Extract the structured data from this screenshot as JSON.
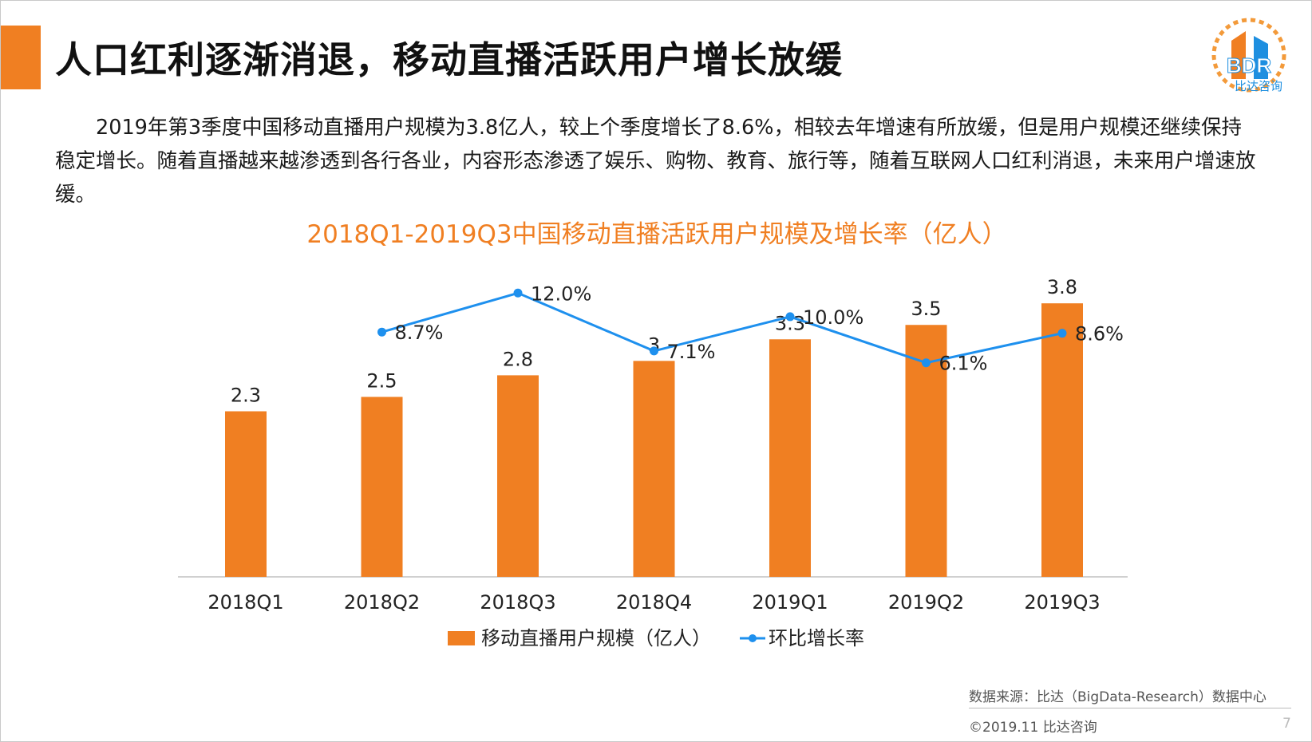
{
  "slide": {
    "title": "人口红利逐渐消退，移动直播活跃用户增长放缓",
    "paragraph": "2019年第3季度中国移动直播用户规模为3.8亿人，较上个季度增长了8.6%，相较去年增速有所放缓，但是用户规模还继续保持稳定增长。随着直播越来越渗透到各行各业，内容形态渗透了娱乐、购物、教育、旅行等，随着互联网人口红利消退，未来用户增速放缓。",
    "logo_text": "BDR",
    "logo_subtext": "比达咨询",
    "source": "数据来源：比达（BigData-Research）数据中心",
    "copyright": "©2019.11 比达咨询",
    "page_number": "7",
    "accent_color": "#f07f22",
    "line_color": "#1e90ee"
  },
  "chart_data": {
    "type": "bar",
    "title": "2018Q1-2019Q3中国移动直播活跃用户规模及增长率（亿人）",
    "categories": [
      "2018Q1",
      "2018Q2",
      "2018Q3",
      "2018Q4",
      "2019Q1",
      "2019Q2",
      "2019Q3"
    ],
    "series": [
      {
        "name": "移动直播用户规模（亿人）",
        "type": "bar",
        "values": [
          2.3,
          2.5,
          2.8,
          3,
          3.3,
          3.5,
          3.8
        ],
        "labels": [
          "2.3",
          "2.5",
          "2.8",
          "3",
          "3.3",
          "3.5",
          "3.8"
        ]
      },
      {
        "name": "环比增长率",
        "type": "line",
        "values": [
          null,
          8.7,
          12.0,
          7.1,
          10.0,
          6.1,
          8.6
        ],
        "labels": [
          "",
          "8.7%",
          "12.0%",
          "7.1%",
          "10.0%",
          "6.1%",
          "8.6%"
        ]
      }
    ],
    "xlabel": "",
    "ylabel": "",
    "ylim": [
      0,
      4.6
    ],
    "y2lim": [
      -12,
      16
    ],
    "legend_position": "bottom",
    "grid": false
  }
}
